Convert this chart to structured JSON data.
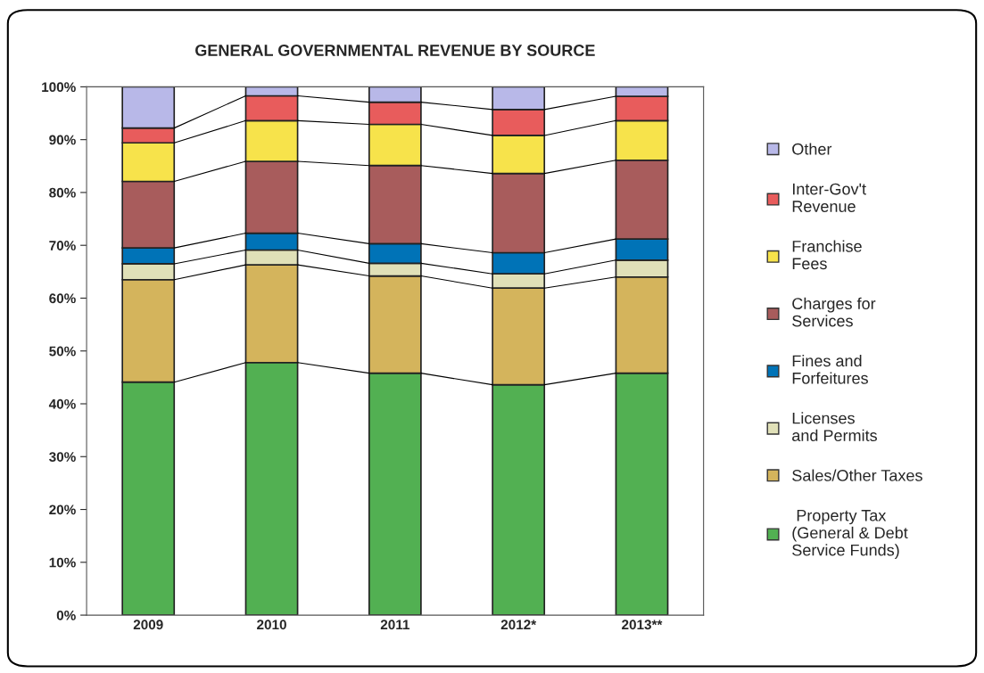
{
  "chart_data": {
    "type": "bar",
    "title": "GENERAL GOVERNMENTAL REVENUE BY SOURCE",
    "stacked": true,
    "categories": [
      "2009",
      "2010",
      "2011",
      "2012*",
      "2013**"
    ],
    "series": [
      {
        "name": " Property Tax\n(General & Debt\nService Funds)",
        "color": "#52b052",
        "values": [
          44.1,
          47.8,
          45.8,
          43.6,
          45.8
        ]
      },
      {
        "name": "Sales/Other Taxes",
        "color": "#d4b45c",
        "values": [
          19.4,
          18.5,
          18.4,
          18.3,
          18.2
        ]
      },
      {
        "name": "Licenses\nand Permits",
        "color": "#e0e0b8",
        "values": [
          3.0,
          2.8,
          2.4,
          2.7,
          3.2
        ]
      },
      {
        "name": "Fines and\nForfeitures",
        "color": "#0073b7",
        "values": [
          3.0,
          3.2,
          3.7,
          4.0,
          4.0
        ]
      },
      {
        "name": "Charges for\nServices",
        "color": "#a85c5c",
        "values": [
          12.6,
          13.6,
          14.8,
          15.0,
          14.9
        ]
      },
      {
        "name": "Franchise\nFees",
        "color": "#f7e34b",
        "values": [
          7.3,
          7.7,
          7.8,
          7.2,
          7.5
        ]
      },
      {
        "name": "Inter-Gov't\nRevenue",
        "color": "#e85c5c",
        "values": [
          2.8,
          4.7,
          4.2,
          4.9,
          4.6
        ]
      },
      {
        "name": "Other",
        "color": "#b8b8e8",
        "values": [
          7.8,
          1.7,
          2.9,
          4.3,
          1.8
        ]
      }
    ],
    "ylim": [
      0,
      100
    ],
    "yticks": [
      {
        "value": 0,
        "label": "0%"
      },
      {
        "value": 10,
        "label": "10%"
      },
      {
        "value": 20,
        "label": "20%"
      },
      {
        "value": 30,
        "label": "30%"
      },
      {
        "value": 40,
        "label": "40%"
      },
      {
        "value": 50,
        "label": "50%"
      },
      {
        "value": 60,
        "label": "60%"
      },
      {
        "value": 70,
        "label": "70%"
      },
      {
        "value": 80,
        "label": "80%"
      },
      {
        "value": 90,
        "label": "90%"
      },
      {
        "value": 100,
        "label": "100%"
      }
    ],
    "grid": false,
    "legend": "right"
  }
}
